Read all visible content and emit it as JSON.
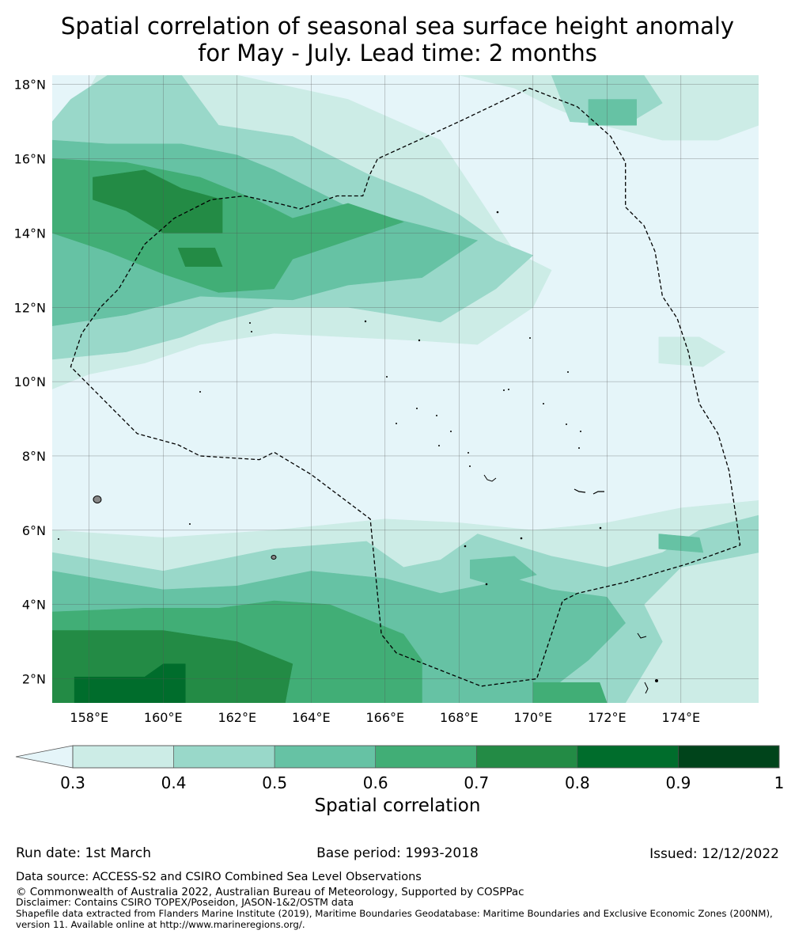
{
  "title": {
    "line1": "Spatial correlation of seasonal sea surface height anomaly",
    "line2": "for May - July. Lead time: 2 months"
  },
  "map": {
    "lon_range": [
      157.0,
      176.1
    ],
    "lat_range": [
      1.35,
      18.25
    ],
    "lat_ticks": [
      {
        "value": 18,
        "label": "18°N"
      },
      {
        "value": 16,
        "label": "16°N"
      },
      {
        "value": 14,
        "label": "14°N"
      },
      {
        "value": 12,
        "label": "12°N"
      },
      {
        "value": 10,
        "label": "10°N"
      },
      {
        "value": 8,
        "label": "8°N"
      },
      {
        "value": 6,
        "label": "6°N"
      },
      {
        "value": 4,
        "label": "4°N"
      },
      {
        "value": 2,
        "label": "2°N"
      }
    ],
    "lon_ticks": [
      {
        "value": 158,
        "label": "158°E"
      },
      {
        "value": 160,
        "label": "160°E"
      },
      {
        "value": 162,
        "label": "162°E"
      },
      {
        "value": 164,
        "label": "164°E"
      },
      {
        "value": 166,
        "label": "166°E"
      },
      {
        "value": 168,
        "label": "168°E"
      },
      {
        "value": 170,
        "label": "170°E"
      },
      {
        "value": 172,
        "label": "172°E"
      },
      {
        "value": 174,
        "label": "174°E"
      }
    ],
    "eez_boundary": [
      [
        169.9,
        17.9
      ],
      [
        171.2,
        17.4
      ],
      [
        172.1,
        16.6
      ],
      [
        172.5,
        15.9
      ],
      [
        172.5,
        14.7
      ],
      [
        173.0,
        14.2
      ],
      [
        173.3,
        13.5
      ],
      [
        173.5,
        12.3
      ],
      [
        173.9,
        11.7
      ],
      [
        174.2,
        10.8
      ],
      [
        174.5,
        9.4
      ],
      [
        175.0,
        8.6
      ],
      [
        175.3,
        7.6
      ],
      [
        175.5,
        6.3
      ],
      [
        175.6,
        5.6
      ],
      [
        174.2,
        5.1
      ],
      [
        172.5,
        4.6
      ],
      [
        171.2,
        4.3
      ],
      [
        170.8,
        4.1
      ],
      [
        170.1,
        2.0
      ],
      [
        168.6,
        1.8
      ],
      [
        166.3,
        2.7
      ],
      [
        165.9,
        3.2
      ],
      [
        165.6,
        6.3
      ],
      [
        164.0,
        7.5
      ],
      [
        163.0,
        8.1
      ],
      [
        162.6,
        7.9
      ],
      [
        161.0,
        8.0
      ],
      [
        160.4,
        8.3
      ],
      [
        159.3,
        8.6
      ],
      [
        158.4,
        9.5
      ],
      [
        157.5,
        10.4
      ],
      [
        157.8,
        11.3
      ],
      [
        158.3,
        12.0
      ],
      [
        158.8,
        12.5
      ],
      [
        159.5,
        13.7
      ],
      [
        160.3,
        14.4
      ],
      [
        161.3,
        14.9
      ],
      [
        162.2,
        15.0
      ],
      [
        163.1,
        14.8
      ],
      [
        163.7,
        14.65
      ],
      [
        164.7,
        15.0
      ],
      [
        165.4,
        15.0
      ],
      [
        165.6,
        15.6
      ],
      [
        165.8,
        16.0
      ],
      [
        168.0,
        17.0
      ],
      [
        169.9,
        17.9
      ]
    ],
    "correlation_regions": [
      {
        "value": 0.35,
        "polygon": [
          [
            157.0,
            16.9
          ],
          [
            157.8,
            17.5
          ],
          [
            158.2,
            18.25
          ],
          [
            162.0,
            18.25
          ],
          [
            165.0,
            17.6
          ],
          [
            167.5,
            16.5
          ],
          [
            168.5,
            15.0
          ],
          [
            169.5,
            13.5
          ],
          [
            170.5,
            13.0
          ],
          [
            170.0,
            12.0
          ],
          [
            168.5,
            11.0
          ],
          [
            167.0,
            11.1
          ],
          [
            165.0,
            11.2
          ],
          [
            163.0,
            11.3
          ],
          [
            161.0,
            11.0
          ],
          [
            159.5,
            10.5
          ],
          [
            158.0,
            10.2
          ],
          [
            157.0,
            9.8
          ]
        ]
      },
      {
        "value": 0.35,
        "polygon": [
          [
            157.0,
            6.0
          ],
          [
            160.0,
            5.8
          ],
          [
            163.0,
            6.0
          ],
          [
            166.0,
            6.3
          ],
          [
            168.0,
            6.2
          ],
          [
            170.0,
            6.0
          ],
          [
            172.0,
            6.2
          ],
          [
            174.0,
            6.6
          ],
          [
            176.1,
            6.8
          ],
          [
            176.1,
            1.35
          ],
          [
            157.0,
            1.35
          ]
        ]
      },
      {
        "value": 0.35,
        "polygon": [
          [
            168.0,
            18.25
          ],
          [
            169.5,
            17.9
          ],
          [
            170.5,
            17.4
          ],
          [
            171.5,
            17.0
          ],
          [
            173.5,
            16.5
          ],
          [
            175.0,
            16.5
          ],
          [
            176.1,
            16.9
          ],
          [
            176.1,
            18.25
          ]
        ]
      },
      {
        "value": 0.35,
        "polygon": [
          [
            173.4,
            11.2
          ],
          [
            174.5,
            11.2
          ],
          [
            175.2,
            10.8
          ],
          [
            174.6,
            10.4
          ],
          [
            173.4,
            10.5
          ]
        ]
      },
      {
        "value": 0.45,
        "polygon": [
          [
            157.0,
            17.0
          ],
          [
            157.5,
            17.6
          ],
          [
            158.5,
            18.25
          ],
          [
            160.5,
            18.25
          ],
          [
            161.5,
            16.9
          ],
          [
            163.5,
            16.6
          ],
          [
            165.5,
            15.6
          ],
          [
            167.0,
            15.0
          ],
          [
            168.0,
            14.5
          ],
          [
            169.0,
            13.8
          ],
          [
            170.0,
            13.4
          ],
          [
            169.0,
            12.5
          ],
          [
            167.5,
            11.6
          ],
          [
            165.0,
            12.0
          ],
          [
            163.0,
            12.0
          ],
          [
            161.5,
            11.6
          ],
          [
            160.5,
            11.2
          ],
          [
            159.0,
            10.8
          ],
          [
            157.0,
            10.6
          ]
        ]
      },
      {
        "value": 0.45,
        "polygon": [
          [
            157.0,
            5.4
          ],
          [
            160.0,
            4.9
          ],
          [
            163.0,
            5.5
          ],
          [
            165.5,
            5.7
          ],
          [
            166.5,
            5.0
          ],
          [
            167.5,
            5.2
          ],
          [
            168.5,
            5.9
          ],
          [
            170.5,
            5.3
          ],
          [
            172.0,
            5.0
          ],
          [
            173.5,
            5.4
          ],
          [
            174.5,
            6.0
          ],
          [
            176.1,
            6.4
          ],
          [
            176.1,
            5.4
          ],
          [
            174.0,
            5.0
          ],
          [
            173.0,
            4.0
          ],
          [
            173.5,
            3.0
          ],
          [
            172.5,
            1.35
          ],
          [
            157.0,
            1.35
          ]
        ]
      },
      {
        "value": 0.45,
        "polygon": [
          [
            170.5,
            18.25
          ],
          [
            173.0,
            18.25
          ],
          [
            173.5,
            17.5
          ],
          [
            172.5,
            16.9
          ],
          [
            171.0,
            17.0
          ]
        ]
      },
      {
        "value": 0.55,
        "polygon": [
          [
            157.0,
            16.5
          ],
          [
            158.5,
            16.4
          ],
          [
            160.5,
            16.4
          ],
          [
            162.0,
            16.1
          ],
          [
            163.0,
            15.7
          ],
          [
            165.0,
            14.7
          ],
          [
            167.0,
            14.2
          ],
          [
            168.5,
            13.8
          ],
          [
            167.0,
            12.8
          ],
          [
            165.0,
            12.6
          ],
          [
            163.5,
            12.2
          ],
          [
            161.0,
            12.3
          ],
          [
            159.0,
            11.8
          ],
          [
            157.0,
            11.5
          ]
        ]
      },
      {
        "value": 0.55,
        "polygon": [
          [
            157.0,
            4.9
          ],
          [
            160.0,
            4.4
          ],
          [
            162.0,
            4.5
          ],
          [
            164.0,
            4.9
          ],
          [
            166.0,
            4.7
          ],
          [
            167.5,
            4.3
          ],
          [
            168.5,
            4.5
          ],
          [
            169.5,
            4.7
          ],
          [
            170.5,
            4.4
          ],
          [
            172.0,
            4.2
          ],
          [
            172.5,
            3.5
          ],
          [
            171.5,
            2.5
          ],
          [
            170.0,
            1.35
          ],
          [
            157.0,
            1.35
          ]
        ]
      },
      {
        "value": 0.55,
        "polygon": [
          [
            168.3,
            5.2
          ],
          [
            169.5,
            5.3
          ],
          [
            170.1,
            4.8
          ],
          [
            169.0,
            4.5
          ],
          [
            168.3,
            4.7
          ]
        ]
      },
      {
        "value": 0.55,
        "polygon": [
          [
            171.5,
            17.6
          ],
          [
            172.8,
            17.6
          ],
          [
            172.8,
            16.9
          ],
          [
            171.5,
            16.9
          ]
        ]
      },
      {
        "value": 0.55,
        "polygon": [
          [
            173.4,
            5.9
          ],
          [
            174.5,
            5.8
          ],
          [
            174.6,
            5.4
          ],
          [
            173.4,
            5.5
          ]
        ]
      },
      {
        "value": 0.65,
        "polygon": [
          [
            157.0,
            16.0
          ],
          [
            159.0,
            15.9
          ],
          [
            161.0,
            15.5
          ],
          [
            162.5,
            14.9
          ],
          [
            163.5,
            14.4
          ],
          [
            165.0,
            14.8
          ],
          [
            166.5,
            14.3
          ],
          [
            165.0,
            13.8
          ],
          [
            163.5,
            13.3
          ],
          [
            163.0,
            12.5
          ],
          [
            161.5,
            12.4
          ],
          [
            160.0,
            12.9
          ],
          [
            158.5,
            13.5
          ],
          [
            157.0,
            14.0
          ]
        ]
      },
      {
        "value": 0.65,
        "polygon": [
          [
            157.0,
            3.8
          ],
          [
            159.5,
            3.9
          ],
          [
            161.5,
            3.9
          ],
          [
            163.0,
            4.1
          ],
          [
            164.5,
            4.0
          ],
          [
            165.5,
            3.6
          ],
          [
            166.5,
            3.2
          ],
          [
            167.0,
            2.5
          ],
          [
            167.0,
            1.35
          ],
          [
            157.0,
            1.35
          ]
        ]
      },
      {
        "value": 0.65,
        "polygon": [
          [
            170.0,
            1.35
          ],
          [
            172.0,
            1.35
          ],
          [
            171.8,
            1.9
          ],
          [
            170.0,
            1.9
          ]
        ]
      },
      {
        "value": 0.75,
        "polygon": [
          [
            158.1,
            15.5
          ],
          [
            159.5,
            15.7
          ],
          [
            160.5,
            15.2
          ],
          [
            161.6,
            14.9
          ],
          [
            161.6,
            14.0
          ],
          [
            160.0,
            14.0
          ],
          [
            159.0,
            14.6
          ],
          [
            158.1,
            14.9
          ]
        ]
      },
      {
        "value": 0.75,
        "polygon": [
          [
            160.4,
            13.6
          ],
          [
            161.4,
            13.6
          ],
          [
            161.6,
            13.1
          ],
          [
            160.6,
            13.1
          ]
        ]
      },
      {
        "value": 0.75,
        "polygon": [
          [
            157.0,
            3.3
          ],
          [
            160.0,
            3.3
          ],
          [
            162.0,
            3.0
          ],
          [
            163.5,
            2.4
          ],
          [
            163.3,
            1.35
          ],
          [
            157.0,
            1.35
          ]
        ]
      },
      {
        "value": 0.85,
        "polygon": [
          [
            157.6,
            2.05
          ],
          [
            159.5,
            2.05
          ],
          [
            160.0,
            2.4
          ],
          [
            160.6,
            2.4
          ],
          [
            160.6,
            1.35
          ],
          [
            157.6,
            1.35
          ]
        ]
      }
    ]
  },
  "colorbar": {
    "ticks": [
      "0.3",
      "0.4",
      "0.5",
      "0.6",
      "0.7",
      "0.8",
      "0.9",
      "1"
    ],
    "title": "Spatial correlation",
    "bins": [
      {
        "from": 0.3,
        "to": 0.4,
        "color": "#ccece6"
      },
      {
        "from": 0.4,
        "to": 0.5,
        "color": "#99d8c9"
      },
      {
        "from": 0.5,
        "to": 0.6,
        "color": "#66c2a4"
      },
      {
        "from": 0.6,
        "to": 0.7,
        "color": "#41ae76"
      },
      {
        "from": 0.7,
        "to": 0.8,
        "color": "#238b45"
      },
      {
        "from": 0.8,
        "to": 0.9,
        "color": "#006d2c"
      },
      {
        "from": 0.9,
        "to": 1.0,
        "color": "#00441b"
      }
    ],
    "under_color": "#e5f5f9"
  },
  "footer": {
    "run_date": "Run date: 1st March",
    "base_period": "Base period: 1993-2018",
    "issued": "Issued: 12/12/2022",
    "data_source": "Data source: ACCESS-S2 and CSIRO Combined Sea Level Observations",
    "copyright": "© Commonwealth of Australia 2022, Australian Bureau of Meteorology, Supported by COSPPac",
    "disclaimer": "Disclaimer: Contains CSIRO TOPEX/Poseidon, JASON-1&2/OSTM data",
    "shapefile_line1": "Shapefile data extracted from Flanders Marine Institute (2019), Maritime Boundaries Geodatabase: Maritime Boundaries and Exclusive Economic Zones (200NM),",
    "shapefile_line2": "version 11. Available online at http://www.marineregions.org/."
  }
}
